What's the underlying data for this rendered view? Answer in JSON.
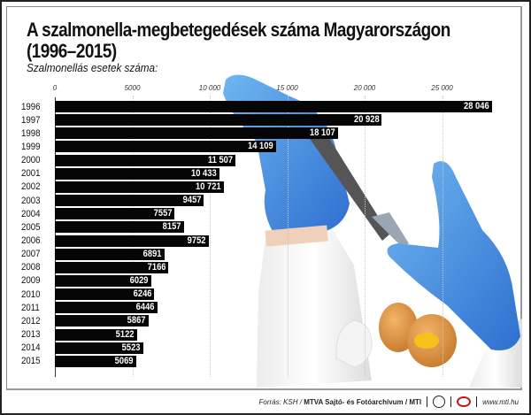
{
  "title_line1": "A szalmonella-megbetegedések száma Magyarországon",
  "title_line2": "(1996–2015)",
  "subtitle": "Szalmonellás esetek száma:",
  "footer": {
    "source_prefix": "Forrás: KSH / ",
    "source_bold": "MTVA Sajtó- és Fotóarchívum / MTI",
    "website": "www.mti.hu",
    "logos": [
      "mtva-logo",
      "mti-logo"
    ]
  },
  "colors": {
    "bar": "#050505",
    "bar_label": "#ffffff",
    "glove": "#3a7fd6",
    "egg": "#d98b3a"
  },
  "chart_data": {
    "type": "bar",
    "orientation": "horizontal",
    "title": "A szalmonella-megbetegedések száma Magyarországon (1996–2015)",
    "xlabel": "Szalmonellás esetek száma:",
    "ylabel": "",
    "xlim": [
      0,
      28046
    ],
    "xticks": [
      0,
      5000,
      10000,
      15000,
      20000,
      25000
    ],
    "xtick_labels": [
      "0",
      "5000",
      "10 000",
      "15 000",
      "20 000",
      "25 000"
    ],
    "grid": true,
    "legend": null,
    "categories": [
      "1996",
      "1997",
      "1998",
      "1999",
      "2000",
      "2001",
      "2002",
      "2003",
      "2004",
      "2005",
      "2006",
      "2007",
      "2008",
      "2009",
      "2010",
      "2011",
      "2012",
      "2013",
      "2014",
      "2015"
    ],
    "values": [
      28046,
      20928,
      18107,
      14109,
      11507,
      10433,
      10721,
      9457,
      7557,
      8157,
      9752,
      6891,
      7166,
      6029,
      6246,
      6446,
      5867,
      5122,
      5523,
      5069
    ],
    "value_labels": [
      "28 046",
      "20 928",
      "18 107",
      "14 109",
      "11 507",
      "10 433",
      "10 721",
      "9457",
      "7557",
      "8157",
      "9752",
      "6891",
      "7166",
      "6029",
      "6246",
      "6446",
      "5867",
      "5122",
      "5523",
      "5069"
    ]
  }
}
